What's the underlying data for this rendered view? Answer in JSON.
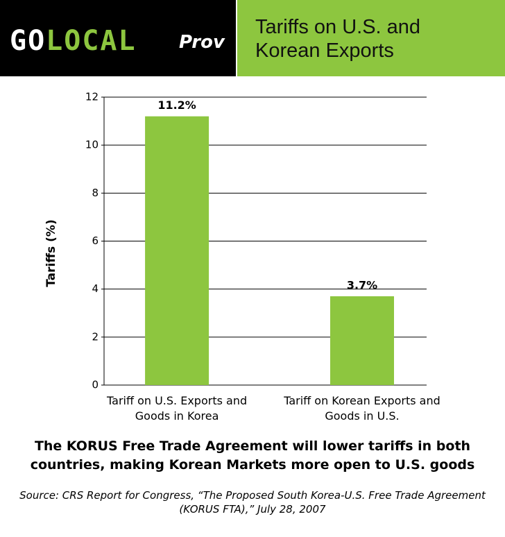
{
  "header": {
    "logo_go": "GO",
    "logo_local": "LOCAL",
    "logo_city": "Prov"
  },
  "chart_data": {
    "type": "bar",
    "title": "Tariffs on U.S. and Korean Exports",
    "y_label": "Tariffs (%)",
    "categories": [
      "Tariff on U.S. Exports and Goods in Korea",
      "Tariff on Korean Exports and Goods in U.S."
    ],
    "values": [
      11.2,
      3.7
    ],
    "value_labels": [
      "11.2%",
      "3.7%"
    ],
    "color": "#8dc63f",
    "ylim": [
      0,
      12
    ],
    "yticks": [
      0,
      2,
      4,
      6,
      8,
      10,
      12
    ],
    "grid": true
  },
  "caption": "The KORUS Free Trade Agreement will lower tariffs in both countries, making Korean Markets more open to U.S. goods",
  "source": "Source: CRS Report for Congress, “The Proposed South Korea-U.S. Free Trade Agreement (KORUS FTA),” July 28, 2007"
}
